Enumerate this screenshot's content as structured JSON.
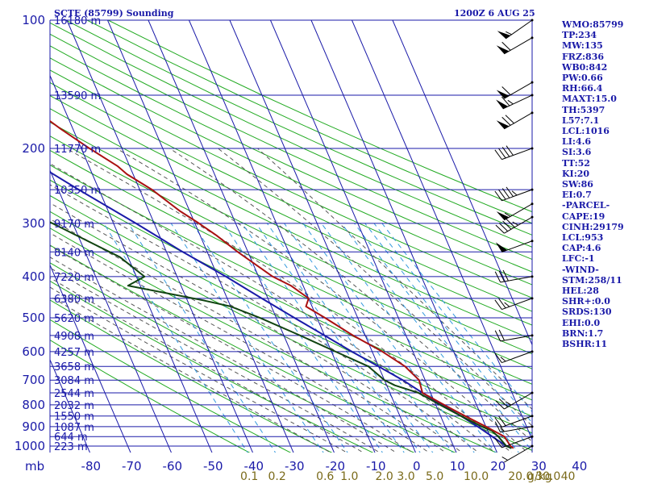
{
  "chart_data": {
    "type": "skew-t",
    "title_left": "SCTE (85799) Sounding",
    "title_right": "1200Z  6 AUG 25",
    "pressure_unit": "mb",
    "mixing_ratio_unit": "g/kg",
    "pressure_ticks": [
      100,
      200,
      300,
      400,
      500,
      600,
      700,
      800,
      900,
      1000
    ],
    "temperature_ticks": [
      -80,
      -70,
      -60,
      -50,
      -40,
      -30,
      -20,
      -10,
      0,
      10,
      20,
      30,
      40
    ],
    "height_labels": [
      {
        "p": 100,
        "label": "16180 m"
      },
      {
        "p": 150,
        "label": "13590 m"
      },
      {
        "p": 200,
        "label": "11770 m"
      },
      {
        "p": 250,
        "label": "10350 m"
      },
      {
        "p": 300,
        "label": "9170 m"
      },
      {
        "p": 350,
        "label": "8140 m"
      },
      {
        "p": 400,
        "label": "7220 m"
      },
      {
        "p": 450,
        "label": "6380 m"
      },
      {
        "p": 500,
        "label": "5620 m"
      },
      {
        "p": 550,
        "label": "4908 m"
      },
      {
        "p": 600,
        "label": "4257 m"
      },
      {
        "p": 650,
        "label": "3658 m"
      },
      {
        "p": 700,
        "label": "3084 m"
      },
      {
        "p": 750,
        "label": "2544 m"
      },
      {
        "p": 800,
        "label": "2032 m"
      },
      {
        "p": 850,
        "label": "1550 m"
      },
      {
        "p": 900,
        "label": "1087 m"
      },
      {
        "p": 950,
        "label": "644 m"
      },
      {
        "p": 1000,
        "label": "223 m"
      }
    ],
    "mixing_ratio_labels": [
      "0.1",
      "0.2",
      "0.6",
      "1.0",
      "2.0",
      "3.0",
      "5.0",
      "10.0",
      "20.0",
      "30.0",
      "40"
    ],
    "mixing_ratio_values": [
      0.1,
      0.2,
      0.6,
      1.0,
      2.0,
      3.0,
      5.0,
      10.0,
      20.0,
      30.0,
      40.0
    ],
    "temperature_profile": [
      {
        "p": 1012,
        "t": 24.5
      },
      {
        "p": 1000,
        "t": 24.0
      },
      {
        "p": 950,
        "t": 23.5
      },
      {
        "p": 900,
        "t": 20.0
      },
      {
        "p": 850,
        "t": 16.0
      },
      {
        "p": 800,
        "t": 12.0
      },
      {
        "p": 750,
        "t": 8.0
      },
      {
        "p": 700,
        "t": 8.5
      },
      {
        "p": 650,
        "t": 6.5
      },
      {
        "p": 600,
        "t": 2.5
      },
      {
        "p": 550,
        "t": -3.0
      },
      {
        "p": 500,
        "t": -8.0
      },
      {
        "p": 470,
        "t": -11.5
      },
      {
        "p": 450,
        "t": -10.0
      },
      {
        "p": 420,
        "t": -13.0
      },
      {
        "p": 400,
        "t": -16.5
      },
      {
        "p": 350,
        "t": -22.5
      },
      {
        "p": 320,
        "t": -26.0
      },
      {
        "p": 300,
        "t": -29.0
      },
      {
        "p": 280,
        "t": -32.5
      },
      {
        "p": 250,
        "t": -37.0
      },
      {
        "p": 230,
        "t": -41.5
      },
      {
        "p": 220,
        "t": -43.0
      },
      {
        "p": 200,
        "t": -48.0
      },
      {
        "p": 180,
        "t": -53.0
      },
      {
        "p": 160,
        "t": -58.0
      },
      {
        "p": 140,
        "t": -63.5
      },
      {
        "p": 130,
        "t": -67.5
      },
      {
        "p": 115,
        "t": -72.0
      },
      {
        "p": 100,
        "t": -78.0
      }
    ],
    "dewpoint_profile": [
      {
        "p": 1012,
        "t": 24.0
      },
      {
        "p": 1000,
        "t": 23.0
      },
      {
        "p": 950,
        "t": 22.0
      },
      {
        "p": 920,
        "t": 21.0
      },
      {
        "p": 900,
        "t": 19.0
      },
      {
        "p": 850,
        "t": 15.0
      },
      {
        "p": 800,
        "t": 11.0
      },
      {
        "p": 750,
        "t": 7.0
      },
      {
        "p": 720,
        "t": 2.0
      },
      {
        "p": 700,
        "t": 0.0
      },
      {
        "p": 650,
        "t": -2.5
      },
      {
        "p": 600,
        "t": -9.0
      },
      {
        "p": 550,
        "t": -16.0
      },
      {
        "p": 500,
        "t": -24.0
      },
      {
        "p": 470,
        "t": -30.0
      },
      {
        "p": 455,
        "t": -36.0
      },
      {
        "p": 420,
        "t": -53.0
      },
      {
        "p": 400,
        "t": -48.0
      },
      {
        "p": 360,
        "t": -52.0
      },
      {
        "p": 300,
        "t": -65.0
      },
      {
        "p": 280,
        "t": -70.0
      },
      {
        "p": 250,
        "t": -75.0
      },
      {
        "p": 210,
        "t": -82.0
      }
    ],
    "parcel_profile": [
      {
        "p": 1012,
        "t": 24.0
      },
      {
        "p": 1000,
        "t": 23.0
      },
      {
        "p": 950,
        "t": 20.5
      },
      {
        "p": 900,
        "t": 18.0
      },
      {
        "p": 850,
        "t": 15.0
      },
      {
        "p": 800,
        "t": 11.5
      },
      {
        "p": 750,
        "t": 8.0
      },
      {
        "p": 700,
        "t": 4.5
      },
      {
        "p": 650,
        "t": 0.0
      },
      {
        "p": 600,
        "t": -5.0
      },
      {
        "p": 550,
        "t": -10.0
      },
      {
        "p": 500,
        "t": -15.5
      },
      {
        "p": 450,
        "t": -21.5
      },
      {
        "p": 400,
        "t": -28.0
      },
      {
        "p": 350,
        "t": -36.0
      },
      {
        "p": 300,
        "t": -44.5
      },
      {
        "p": 250,
        "t": -55.0
      },
      {
        "p": 220,
        "t": -62.0
      }
    ],
    "wind_barbs": [
      {
        "p": 1000,
        "dir": 240,
        "spd": 5
      },
      {
        "p": 950,
        "dir": 250,
        "spd": 10
      },
      {
        "p": 900,
        "dir": 260,
        "spd": 15
      },
      {
        "p": 850,
        "dir": 250,
        "spd": 20
      },
      {
        "p": 750,
        "dir": 240,
        "spd": 25
      },
      {
        "p": 600,
        "dir": 250,
        "spd": 15
      },
      {
        "p": 550,
        "dir": 260,
        "spd": 20
      },
      {
        "p": 450,
        "dir": 250,
        "spd": 25
      },
      {
        "p": 400,
        "dir": 260,
        "spd": 30
      },
      {
        "p": 330,
        "dir": 250,
        "spd": 50
      },
      {
        "p": 290,
        "dir": 240,
        "spd": 45
      },
      {
        "p": 270,
        "dir": 240,
        "spd": 55
      },
      {
        "p": 250,
        "dir": 250,
        "spd": 45
      },
      {
        "p": 200,
        "dir": 250,
        "spd": 40
      },
      {
        "p": 165,
        "dir": 240,
        "spd": 70
      },
      {
        "p": 150,
        "dir": 245,
        "spd": 65
      },
      {
        "p": 140,
        "dir": 240,
        "spd": 60
      },
      {
        "p": 110,
        "dir": 240,
        "spd": 60
      },
      {
        "p": 100,
        "dir": 235,
        "spd": 55
      }
    ],
    "colors": {
      "isobars": "#1a1aa8",
      "isotherms": "#1a1aa8",
      "dry_adiabats": "#22aa22",
      "moist_adiabats": "#555555",
      "mixing_ratio": "#3399dd",
      "temperature": "#aa1111",
      "dewpoint": "#114411",
      "parcel": "#1a1aa8",
      "wind": "#000000"
    }
  },
  "indices": [
    "WMO:85799",
    "TP:234",
    "MW:135",
    "FRZ:836",
    "WB0:842",
    "PW:0.66",
    "RH:66.4",
    "MAXT:15.0",
    "TH:5397",
    "L57:7.1",
    "LCL:1016",
    "LI:4.6",
    "SI:3.6",
    "TT:52",
    "KI:20",
    "SW:86",
    "EI:0.7",
    "-PARCEL-",
    "CAPE:19",
    "CINH:29179",
    "LCL:953",
    "CAP:4.6",
    "LFC:-1",
    "-WIND-",
    "STM:258/11",
    "HEL:28",
    "SHR+:0.0",
    "SRDS:130",
    "EHI:0.0",
    "BRN:1.7",
    "BSHR:11"
  ]
}
